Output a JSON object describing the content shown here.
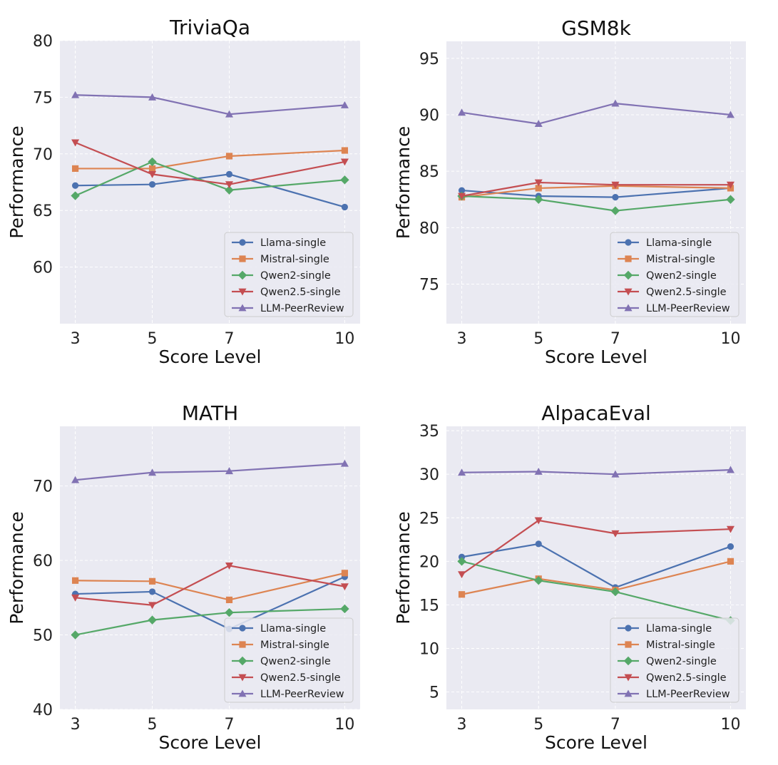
{
  "chart_data": [
    {
      "type": "line",
      "title": "TriviaQa",
      "xlabel": "Score Level",
      "ylabel": "Performance",
      "x": [
        3,
        5,
        7,
        10
      ],
      "xticks": [
        "3",
        "5",
        "7",
        "10"
      ],
      "ylim": [
        55,
        80
      ],
      "yticks": [
        60,
        65,
        70,
        75,
        80
      ],
      "legend": "lower-right",
      "series": [
        {
          "name": "Llama-single",
          "color": "#4C72B0",
          "marker": "circle",
          "values": [
            67.2,
            67.3,
            68.2,
            65.3
          ]
        },
        {
          "name": "Mistral-single",
          "color": "#DD8452",
          "marker": "square",
          "values": [
            68.7,
            68.7,
            69.8,
            70.3
          ]
        },
        {
          "name": "Qwen2-single",
          "color": "#55A868",
          "marker": "diamond",
          "values": [
            66.3,
            69.3,
            66.8,
            67.7
          ]
        },
        {
          "name": "Qwen2.5-single",
          "color": "#C44E52",
          "marker": "triangle-down",
          "values": [
            71.0,
            68.2,
            67.3,
            69.3
          ]
        },
        {
          "name": "LLM-PeerReview",
          "color": "#8172B3",
          "marker": "triangle-up",
          "values": [
            75.2,
            75.0,
            73.5,
            74.3
          ]
        }
      ]
    },
    {
      "type": "line",
      "title": "GSM8k",
      "xlabel": "Score Level",
      "ylabel": "Performance",
      "x": [
        3,
        5,
        7,
        10
      ],
      "xticks": [
        "3",
        "5",
        "7",
        "10"
      ],
      "ylim": [
        71.5,
        96.5
      ],
      "yticks": [
        75,
        80,
        85,
        90,
        95
      ],
      "legend": "lower-right",
      "series": [
        {
          "name": "Llama-single",
          "color": "#4C72B0",
          "marker": "circle",
          "values": [
            83.3,
            82.8,
            82.7,
            83.5
          ]
        },
        {
          "name": "Mistral-single",
          "color": "#DD8452",
          "marker": "square",
          "values": [
            82.7,
            83.5,
            83.7,
            83.5
          ]
        },
        {
          "name": "Qwen2-single",
          "color": "#55A868",
          "marker": "diamond",
          "values": [
            82.8,
            82.5,
            81.5,
            82.5
          ]
        },
        {
          "name": "Qwen2.5-single",
          "color": "#C44E52",
          "marker": "triangle-down",
          "values": [
            82.8,
            84.0,
            83.8,
            83.8
          ]
        },
        {
          "name": "LLM-PeerReview",
          "color": "#8172B3",
          "marker": "triangle-up",
          "values": [
            90.2,
            89.2,
            91.0,
            90.0
          ]
        }
      ]
    },
    {
      "type": "line",
      "title": "MATH",
      "xlabel": "Score Level",
      "ylabel": "Performance",
      "x": [
        3,
        5,
        7,
        10
      ],
      "xticks": [
        "3",
        "5",
        "7",
        "10"
      ],
      "ylim": [
        40,
        78
      ],
      "yticks": [
        40,
        50,
        60,
        70
      ],
      "legend": "lower-right",
      "series": [
        {
          "name": "Llama-single",
          "color": "#4C72B0",
          "marker": "circle",
          "values": [
            55.5,
            55.8,
            50.8,
            57.8
          ]
        },
        {
          "name": "Mistral-single",
          "color": "#DD8452",
          "marker": "square",
          "values": [
            57.3,
            57.2,
            54.7,
            58.3
          ]
        },
        {
          "name": "Qwen2-single",
          "color": "#55A868",
          "marker": "diamond",
          "values": [
            50.0,
            52.0,
            53.0,
            53.5
          ]
        },
        {
          "name": "Qwen2.5-single",
          "color": "#C44E52",
          "marker": "triangle-down",
          "values": [
            55.0,
            54.0,
            59.3,
            56.5
          ]
        },
        {
          "name": "LLM-PeerReview",
          "color": "#8172B3",
          "marker": "triangle-up",
          "values": [
            70.8,
            71.8,
            72.0,
            73.0
          ]
        }
      ]
    },
    {
      "type": "line",
      "title": "AlpacaEval",
      "xlabel": "Score Level",
      "ylabel": "Performance",
      "x": [
        3,
        5,
        7,
        10
      ],
      "xticks": [
        "3",
        "5",
        "7",
        "10"
      ],
      "ylim": [
        3,
        35.5
      ],
      "yticks": [
        5,
        10,
        15,
        20,
        25,
        30,
        35
      ],
      "legend": "lower-right",
      "series": [
        {
          "name": "Llama-single",
          "color": "#4C72B0",
          "marker": "circle",
          "values": [
            20.5,
            22.0,
            17.0,
            21.7
          ]
        },
        {
          "name": "Mistral-single",
          "color": "#DD8452",
          "marker": "square",
          "values": [
            16.2,
            18.0,
            16.7,
            20.0
          ]
        },
        {
          "name": "Qwen2-single",
          "color": "#55A868",
          "marker": "diamond",
          "values": [
            20.0,
            17.8,
            16.5,
            13.2
          ]
        },
        {
          "name": "Qwen2.5-single",
          "color": "#C44E52",
          "marker": "triangle-down",
          "values": [
            18.5,
            24.7,
            23.2,
            23.7
          ]
        },
        {
          "name": "LLM-PeerReview",
          "color": "#8172B3",
          "marker": "triangle-up",
          "values": [
            30.2,
            30.3,
            30.0,
            30.5
          ]
        }
      ]
    }
  ]
}
